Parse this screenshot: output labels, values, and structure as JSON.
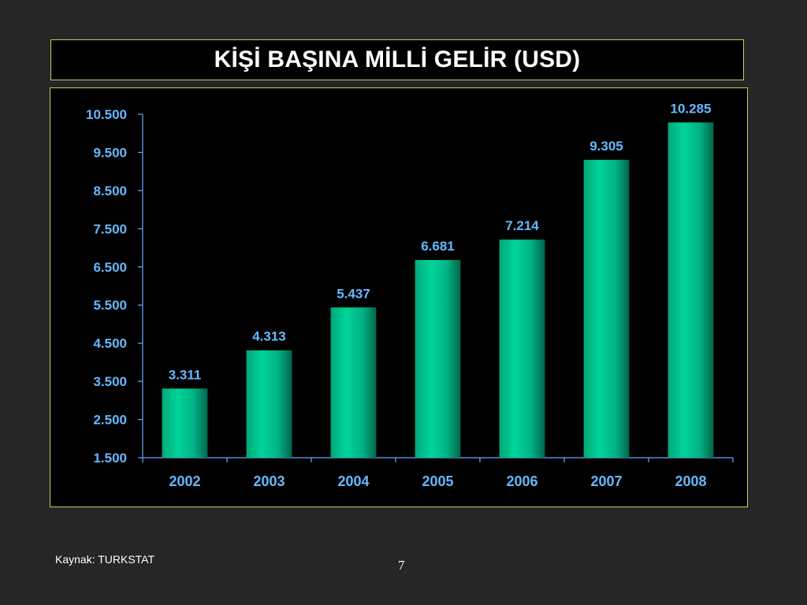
{
  "slide": {
    "source": "Kaynak: TURKSTAT",
    "page_number": "7"
  },
  "colors": {
    "background": "#262626",
    "panel": "#000000",
    "border": "#c8c85a",
    "bar_light": "#00d49a",
    "bar_dark": "#00674c",
    "label": "#66b8ff",
    "axis": "#6aa8ff"
  },
  "chart_data": {
    "type": "bar",
    "title": "KİŞİ BAŞINA MİLLİ GELİR (USD)",
    "categories": [
      "2002",
      "2003",
      "2004",
      "2005",
      "2006",
      "2007",
      "2008"
    ],
    "values": [
      3311,
      4313,
      5437,
      6681,
      7214,
      9305,
      10285
    ],
    "value_labels": [
      "3.311",
      "4.313",
      "5.437",
      "6.681",
      "7.214",
      "9.305",
      "10.285"
    ],
    "ylim": [
      1500,
      10500
    ],
    "yticks": [
      1500,
      2500,
      3500,
      4500,
      5500,
      6500,
      7500,
      8500,
      9500,
      10500
    ],
    "ytick_labels": [
      "1.500",
      "2.500",
      "3.500",
      "4.500",
      "5.500",
      "6.500",
      "7.500",
      "8.500",
      "9.500",
      "10.500"
    ],
    "xlabel": "",
    "ylabel": "",
    "grid": false,
    "legend": false
  }
}
